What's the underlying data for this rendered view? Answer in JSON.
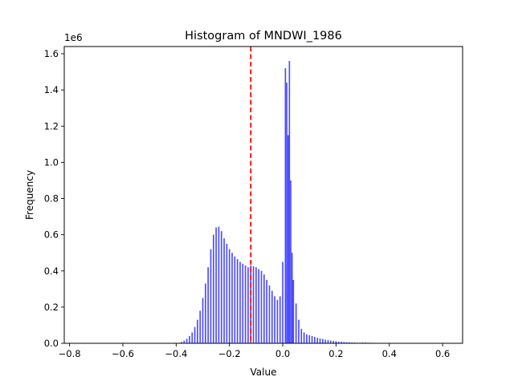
{
  "chart_data": {
    "type": "bar",
    "title": "Histogram of MNDWI_1986",
    "xlabel": "Value",
    "ylabel": "Frequency",
    "y_offset_label": "1e6",
    "xlim": [
      -0.82,
      0.675
    ],
    "ylim": [
      0,
      1.64
    ],
    "y_unit_scale": 1000000,
    "xticks": [
      -0.8,
      -0.6,
      -0.4,
      -0.2,
      0.0,
      0.2,
      0.4,
      0.6
    ],
    "xtick_labels": [
      "−0.8",
      "−0.6",
      "−0.4",
      "−0.2",
      "0.0",
      "0.2",
      "0.4",
      "0.6"
    ],
    "yticks": [
      0.0,
      0.2,
      0.4,
      0.6,
      0.8,
      1.0,
      1.2,
      1.4,
      1.6
    ],
    "ytick_labels": [
      "0.0",
      "0.2",
      "0.4",
      "0.6",
      "0.8",
      "1.0",
      "1.2",
      "1.4",
      "1.6"
    ],
    "bar_color": "#4b4bff",
    "threshold_line": {
      "x": -0.12,
      "color": "#ff0000",
      "style": "dashed"
    },
    "bin_width": 0.00496,
    "bins": [
      [
        -0.39,
        0.003
      ],
      [
        -0.38,
        0.008
      ],
      [
        -0.37,
        0.015
      ],
      [
        -0.36,
        0.025
      ],
      [
        -0.35,
        0.04
      ],
      [
        -0.34,
        0.06
      ],
      [
        -0.33,
        0.09
      ],
      [
        -0.32,
        0.13
      ],
      [
        -0.31,
        0.18
      ],
      [
        -0.3,
        0.25
      ],
      [
        -0.29,
        0.33
      ],
      [
        -0.28,
        0.42
      ],
      [
        -0.27,
        0.52
      ],
      [
        -0.26,
        0.6
      ],
      [
        -0.25,
        0.64
      ],
      [
        -0.24,
        0.645
      ],
      [
        -0.23,
        0.62
      ],
      [
        -0.22,
        0.58
      ],
      [
        -0.21,
        0.55
      ],
      [
        -0.2,
        0.52
      ],
      [
        -0.19,
        0.5
      ],
      [
        -0.18,
        0.48
      ],
      [
        -0.17,
        0.465
      ],
      [
        -0.16,
        0.45
      ],
      [
        -0.15,
        0.44
      ],
      [
        -0.14,
        0.43
      ],
      [
        -0.13,
        0.42
      ],
      [
        -0.12,
        0.43
      ],
      [
        -0.11,
        0.425
      ],
      [
        -0.1,
        0.42
      ],
      [
        -0.09,
        0.41
      ],
      [
        -0.08,
        0.4
      ],
      [
        -0.07,
        0.38
      ],
      [
        -0.06,
        0.35
      ],
      [
        -0.05,
        0.32
      ],
      [
        -0.04,
        0.29
      ],
      [
        -0.03,
        0.26
      ],
      [
        -0.02,
        0.24
      ],
      [
        -0.01,
        0.26
      ],
      [
        0.0,
        0.45
      ],
      [
        0.01,
        1.52
      ],
      [
        0.015,
        1.44
      ],
      [
        0.02,
        1.15
      ],
      [
        0.025,
        1.56
      ],
      [
        0.03,
        0.9
      ],
      [
        0.035,
        0.5
      ],
      [
        0.04,
        0.35
      ],
      [
        0.05,
        0.22
      ],
      [
        0.06,
        0.13
      ],
      [
        0.07,
        0.08
      ],
      [
        0.08,
        0.06
      ],
      [
        0.09,
        0.05
      ],
      [
        0.1,
        0.045
      ],
      [
        0.11,
        0.04
      ],
      [
        0.12,
        0.035
      ],
      [
        0.13,
        0.03
      ],
      [
        0.14,
        0.027
      ],
      [
        0.15,
        0.024
      ],
      [
        0.16,
        0.02
      ],
      [
        0.17,
        0.018
      ],
      [
        0.18,
        0.015
      ],
      [
        0.19,
        0.013
      ],
      [
        0.2,
        0.011
      ],
      [
        0.21,
        0.009
      ],
      [
        0.22,
        0.008
      ],
      [
        0.23,
        0.007
      ],
      [
        0.24,
        0.006
      ],
      [
        0.25,
        0.005
      ],
      [
        0.26,
        0.004
      ],
      [
        0.27,
        0.004
      ],
      [
        0.28,
        0.003
      ],
      [
        0.29,
        0.003
      ],
      [
        0.3,
        0.004
      ],
      [
        0.31,
        0.004
      ],
      [
        0.32,
        0.003
      ],
      [
        0.33,
        0.003
      ],
      [
        0.34,
        0.002
      ],
      [
        0.35,
        0.002
      ],
      [
        0.36,
        0.002
      ],
      [
        0.37,
        0.001
      ],
      [
        0.38,
        0.001
      ],
      [
        0.4,
        0.001
      ],
      [
        0.45,
        0.0005
      ],
      [
        0.5,
        0.0004
      ],
      [
        0.55,
        0.0003
      ],
      [
        0.6,
        0.0002
      ]
    ]
  }
}
